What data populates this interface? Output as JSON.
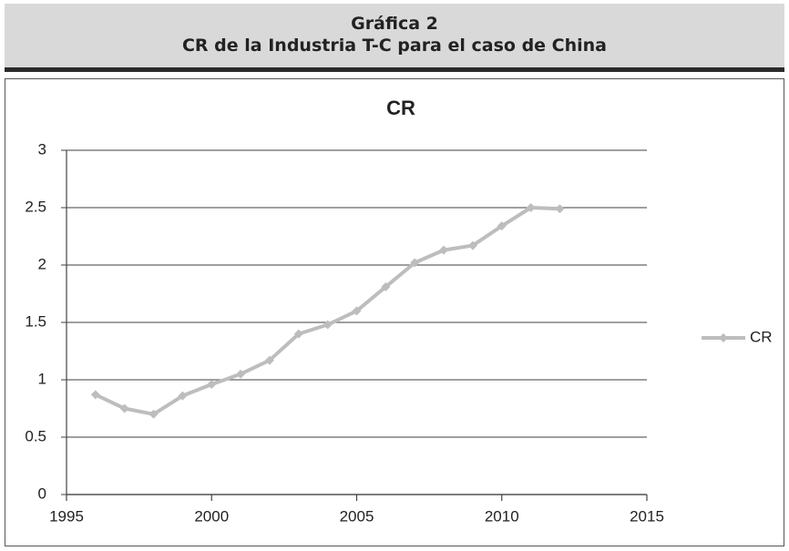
{
  "header": {
    "title": "Gráfica 2",
    "subtitle": "CR de la Industria T-C para el caso de China"
  },
  "chart_data": {
    "type": "line",
    "title": "CR",
    "x": [
      1996,
      1997,
      1998,
      1999,
      2000,
      2001,
      2002,
      2003,
      2004,
      2005,
      2006,
      2007,
      2008,
      2009,
      2010,
      2011,
      2012
    ],
    "series": [
      {
        "name": "CR",
        "color": "#bdbdbd",
        "values": [
          0.87,
          0.75,
          0.7,
          0.86,
          0.96,
          1.05,
          1.17,
          1.4,
          1.48,
          1.6,
          1.81,
          2.02,
          2.13,
          2.17,
          2.34,
          2.5,
          2.49
        ]
      }
    ],
    "xlim": [
      1995,
      2015
    ],
    "xticks": [
      1995,
      2000,
      2005,
      2010,
      2015
    ],
    "ylim": [
      0,
      3
    ],
    "yticks": [
      0,
      0.5,
      1,
      1.5,
      2,
      2.5,
      3
    ],
    "grid": true,
    "legend": "right"
  }
}
